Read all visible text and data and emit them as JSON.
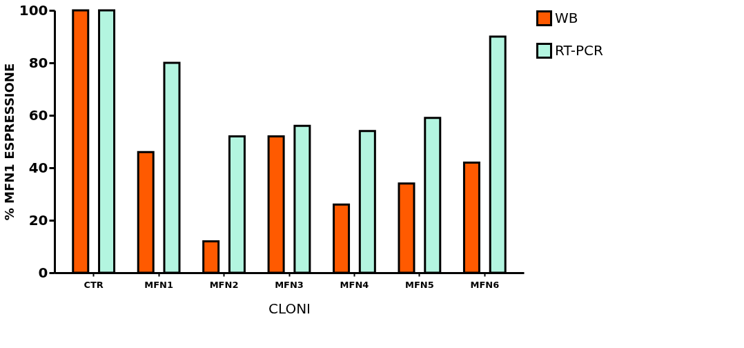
{
  "chart_data": {
    "type": "bar",
    "xlabel": "CLONI",
    "ylabel": "% MFN1 ESPRESSIONE",
    "categories": [
      "CTR",
      "MFN1",
      "MFN2",
      "MFN3",
      "MFN4",
      "MFN5",
      "MFN6"
    ],
    "series": [
      {
        "name": "WB",
        "color": "#ff5a00",
        "values": [
          100,
          46,
          12,
          52,
          26,
          34,
          42
        ]
      },
      {
        "name": "RT-PCR",
        "color": "#b3f5e0",
        "values": [
          100,
          80,
          52,
          56,
          54,
          59,
          90
        ]
      }
    ],
    "ylim": [
      0,
      100
    ],
    "yticks": [
      0,
      20,
      40,
      60,
      80,
      100
    ],
    "grid": false,
    "legend": "top right"
  }
}
